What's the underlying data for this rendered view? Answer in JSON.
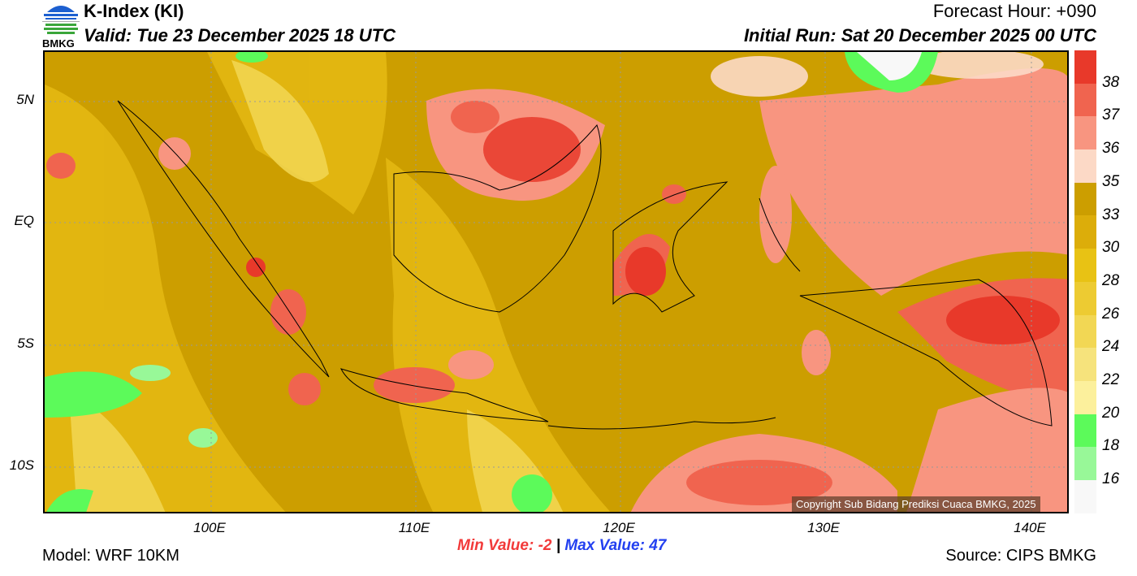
{
  "header": {
    "logo_text": "BMKG",
    "title": "K-Index (KI)",
    "valid": "Valid: Tue 23 December 2025 18 UTC",
    "forecast_hour": "Forecast Hour: +090",
    "initial_run": "Initial Run: Sat 20 December 2025 00 UTC"
  },
  "axes": {
    "lat_labels": [
      "5N",
      "EQ",
      "5S",
      "10S"
    ],
    "lon_labels": [
      "100E",
      "110E",
      "120E",
      "130E",
      "140E"
    ]
  },
  "colorbar": {
    "labels": [
      "38",
      "37",
      "36",
      "35",
      "33",
      "30",
      "28",
      "26",
      "24",
      "22",
      "20",
      "18",
      "16"
    ],
    "colors": [
      "#e8392a",
      "#f0644f",
      "#f89580",
      "#fcd9c6",
      "#cc9e00",
      "#dcad0a",
      "#e8c214",
      "#edcb32",
      "#f2d754",
      "#f6e37c",
      "#fcf09c",
      "#5cfa5a",
      "#98f898",
      "#f8f8f8"
    ]
  },
  "footer": {
    "min_label": "Min Value:  -2",
    "separator": "|",
    "max_label": "Max Value:  47",
    "model": "Model: WRF 10KM",
    "source": "Source: CIPS BMKG",
    "copyright": "Copyright Sub Bidang Prediksi Cuaca BMKG, 2025"
  }
}
